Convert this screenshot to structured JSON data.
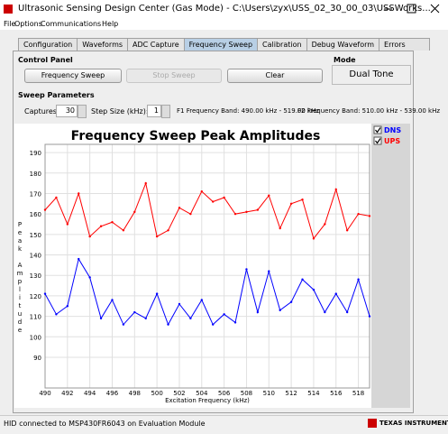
{
  "window": {
    "title": "Ultrasonic Sensing Design Center (Gas Mode) - C:\\Users\\zyx\\USS_02_30_00_03\\USSWorks..."
  },
  "menu": [
    "File",
    "Options",
    "Communications",
    "Help"
  ],
  "tabs": [
    "Configuration",
    "Waveforms",
    "ADC Capture",
    "Frequency Sweep",
    "Calibration",
    "Debug Waveform",
    "Errors"
  ],
  "control_panel": {
    "title": "Control Panel",
    "buttons": [
      "Frequency Sweep",
      "Stop Sweep",
      "Clear"
    ]
  },
  "mode": {
    "title": "Mode",
    "value": "Dual Tone"
  },
  "sweep_parameters": {
    "title": "Sweep Parameters",
    "captures_label": "Captures:",
    "captures": "30",
    "step_label": "Step Size (kHz):",
    "step": "1",
    "f1": "F1 Frequency Band: 490.00 kHz - 519.00 kHz",
    "f2": "F2 Frequency Band: 510.00 kHz - 539.00 kHz"
  },
  "chart_data": {
    "type": "line",
    "title": "Frequency Sweep Peak Amplitudes",
    "x_label": "Excitation Frequency (kHz)",
    "y_label": "Peak Amplitude",
    "x": [
      490,
      491,
      492,
      493,
      494,
      495,
      496,
      497,
      498,
      499,
      500,
      501,
      502,
      503,
      504,
      505,
      506,
      507,
      508,
      509,
      510,
      511,
      512,
      513,
      514,
      515,
      516,
      517,
      518,
      519
    ],
    "series": [
      {
        "name": "DNS",
        "color": "#0000ff",
        "values": [
          121,
          111,
          115,
          138,
          129,
          109,
          118,
          106,
          112,
          109,
          121,
          106,
          116,
          109,
          118,
          106,
          111,
          107,
          133,
          112,
          132,
          113,
          117,
          128,
          123,
          112,
          121,
          112,
          128,
          110
        ]
      },
      {
        "name": "UPS",
        "color": "#ff0000",
        "values": [
          162,
          168,
          155,
          170,
          149,
          154,
          156,
          152,
          161,
          175,
          149,
          152,
          163,
          160,
          171,
          166,
          168,
          160,
          161,
          162,
          169,
          153,
          165,
          167,
          148,
          155,
          172,
          152,
          160,
          159
        ]
      }
    ],
    "xlim": [
      490,
      519
    ],
    "ylim": [
      75,
      194
    ],
    "xticks": [
      490,
      492,
      494,
      496,
      498,
      500,
      502,
      504,
      506,
      508,
      510,
      512,
      514,
      516,
      518
    ],
    "yticks": [
      90,
      100,
      110,
      120,
      130,
      140,
      150,
      160,
      170,
      180,
      190
    ],
    "grid": true
  },
  "status": {
    "text": "HID connected to MSP430FR6043 on Evaluation Module",
    "brand": "TEXAS INSTRUMENTS"
  }
}
